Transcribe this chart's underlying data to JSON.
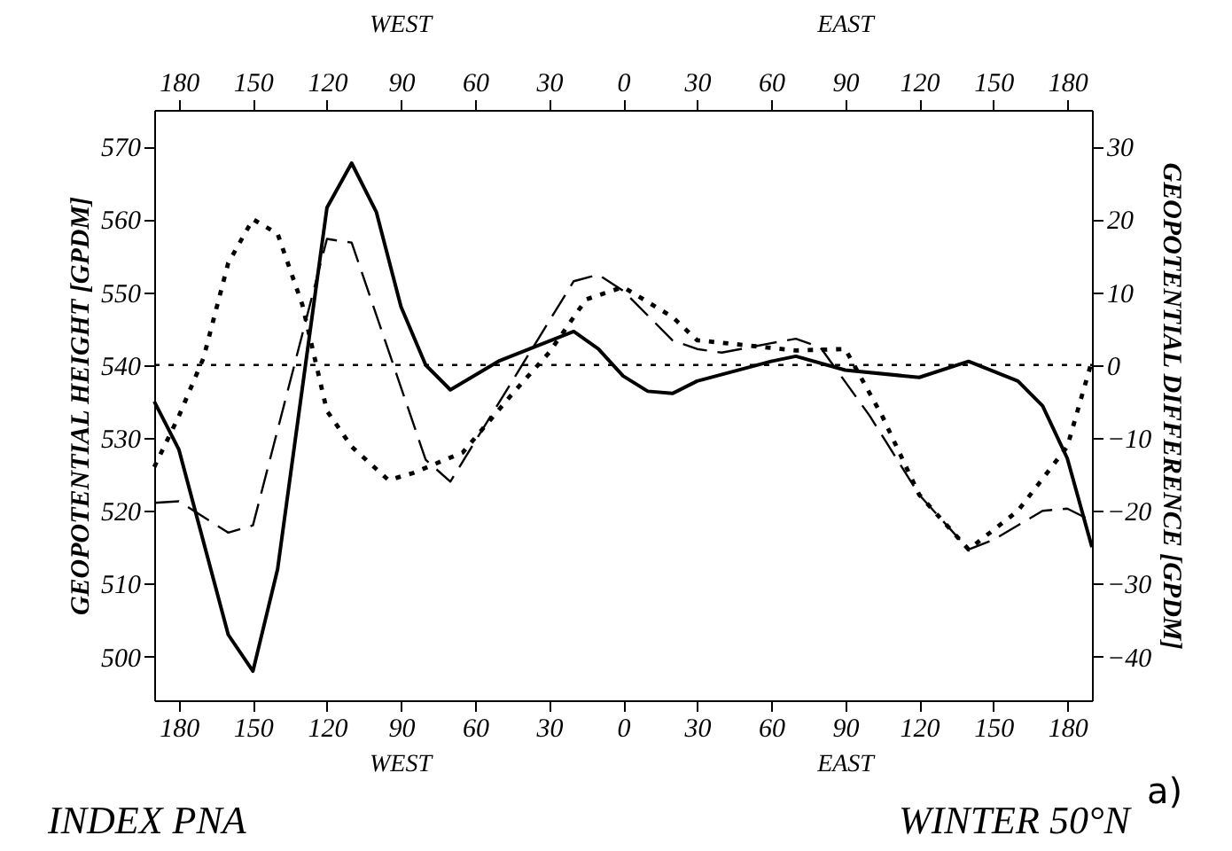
{
  "chart_data": {
    "type": "line",
    "ylabel": "GEOPOTENTIAL HEIGHT [GPDM]",
    "y2label": "GEOPOTENTIAL DIFFERENCE [GPDM]",
    "annotations": [
      "WEST",
      "EAST",
      "WEST",
      "EAST",
      "INDEX PNA",
      "WINTER 50°N",
      "a)"
    ],
    "xlim": [
      -190,
      190
    ],
    "xticks": [
      {
        "value": -180,
        "label": "180"
      },
      {
        "value": -150,
        "label": "150"
      },
      {
        "value": -120,
        "label": "120"
      },
      {
        "value": -90,
        "label": "90"
      },
      {
        "value": -60,
        "label": "60"
      },
      {
        "value": -30,
        "label": "30"
      },
      0,
      30,
      60,
      90,
      120,
      150,
      180
    ],
    "x2lim": [
      -190,
      190
    ],
    "x2ticks": [
      {
        "value": -180,
        "label": "180"
      },
      {
        "value": -150,
        "label": "150"
      },
      {
        "value": -120,
        "label": "120"
      },
      {
        "value": -90,
        "label": "90"
      },
      {
        "value": -60,
        "label": "60"
      },
      {
        "value": -30,
        "label": "30"
      },
      0,
      30,
      60,
      90,
      120,
      150,
      180
    ],
    "ylim": [
      494,
      575
    ],
    "yticks": [
      500,
      510,
      520,
      530,
      540,
      550,
      560,
      570
    ],
    "y2lim": [
      -46,
      35
    ],
    "y2ticks": [
      -40,
      -30,
      -20,
      -10,
      0,
      10,
      20,
      30
    ],
    "marker": "none",
    "ref_lines": [
      {
        "axis": "y",
        "value": 540,
        "line_style": "dotted",
        "color": "#000000"
      }
    ],
    "series": [
      {
        "color": "#000000",
        "line_style": "solid",
        "axis": "y",
        "x": [
          -190,
          -180,
          -160,
          -150,
          -140,
          -120,
          -110,
          -100,
          -90,
          -80,
          -70,
          -50,
          -20,
          -10,
          0,
          10,
          20,
          30,
          60,
          70,
          90,
          120,
          140,
          160,
          170,
          180,
          190
        ],
        "values": [
          535,
          528.4,
          503,
          498,
          512,
          561.6,
          567.7,
          561,
          548,
          540,
          536.6,
          540.6,
          544.6,
          542.2,
          538.5,
          536.4,
          536.1,
          537.8,
          540.5,
          541.2,
          539.3,
          538.3,
          540.5,
          537.8,
          534.4,
          527.2,
          515
        ]
      },
      {
        "color": "#000000",
        "line_style": "dashed",
        "axis": "y",
        "x": [
          -190,
          -180,
          -160,
          -150,
          -120,
          -110,
          -80,
          -70,
          -20,
          -10,
          0,
          20,
          30,
          40,
          60,
          70,
          80,
          100,
          120,
          140,
          150,
          170,
          180,
          190
        ],
        "values": [
          521.1,
          521.3,
          517,
          518,
          557.3,
          556.8,
          527,
          524,
          551.5,
          552.4,
          550.2,
          543.4,
          542.2,
          541.7,
          543,
          543.6,
          542.4,
          533,
          522.2,
          514.7,
          516,
          520,
          520.3,
          518.6
        ]
      },
      {
        "color": "#000000",
        "line_style": "dotted",
        "axis": "y2",
        "x": [
          -190,
          -180,
          -170,
          -160,
          -150,
          -140,
          -130,
          -120,
          -110,
          -95,
          -85,
          -65,
          -45,
          -30,
          -15,
          0,
          20,
          30,
          50,
          70,
          90,
          105,
          120,
          140,
          160,
          180,
          190
        ],
        "values": [
          -14,
          -7,
          1,
          14,
          20,
          18,
          8.3,
          -6.3,
          -11.2,
          -15.8,
          -14.8,
          -12,
          -4,
          1.7,
          9,
          10.7,
          6.6,
          3.4,
          2.7,
          2,
          2.2,
          -7,
          -17.8,
          -25.3,
          -20,
          -11.2,
          0.6
        ]
      }
    ]
  }
}
